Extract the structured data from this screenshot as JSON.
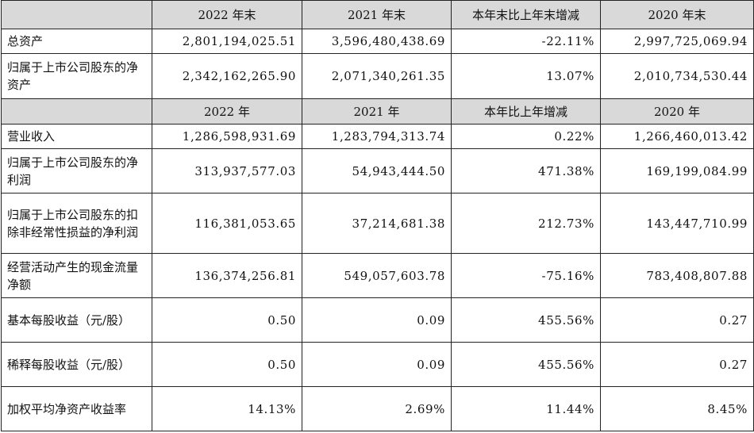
{
  "table": {
    "header_balance": [
      "",
      "2022 年末",
      "2021 年末",
      "本年末比上年末增减",
      "2020 年末"
    ],
    "balance_rows": [
      {
        "label": "总资产",
        "values": [
          "2,801,194,025.51",
          "3,596,480,438.69",
          "-22.11%",
          "2,997,725,069.94"
        ]
      },
      {
        "label": "归属于上市公司股东的净资产",
        "values": [
          "2,342,162,265.90",
          "2,071,340,261.35",
          "13.07%",
          "2,010,734,530.44"
        ]
      }
    ],
    "header_income": [
      "",
      "2022 年",
      "2021 年",
      "本年比上年增减",
      "2020 年"
    ],
    "income_rows": [
      {
        "label": "营业收入",
        "values": [
          "1,286,598,931.69",
          "1,283,794,313.74",
          "0.22%",
          "1,266,460,013.42"
        ]
      },
      {
        "label": "归属于上市公司股东的净利润",
        "values": [
          "313,937,577.03",
          "54,943,444.50",
          "471.38%",
          "169,199,084.99"
        ]
      },
      {
        "label": "归属于上市公司股东的扣除非经常性损益的净利润",
        "values": [
          "116,381,053.65",
          "37,214,681.38",
          "212.73%",
          "143,447,710.99"
        ]
      },
      {
        "label": "经营活动产生的现金流量净额",
        "values": [
          "136,374,256.81",
          "549,057,603.78",
          "-75.16%",
          "783,408,807.88"
        ]
      },
      {
        "label": "基本每股收益（元/股）",
        "values": [
          "0.50",
          "0.09",
          "455.56%",
          "0.27"
        ]
      },
      {
        "label": "稀释每股收益（元/股）",
        "values": [
          "0.50",
          "0.09",
          "455.56%",
          "0.27"
        ]
      },
      {
        "label": "加权平均净资产收益率",
        "values": [
          "14.13%",
          "2.69%",
          "11.44%",
          "8.45%"
        ]
      }
    ]
  }
}
